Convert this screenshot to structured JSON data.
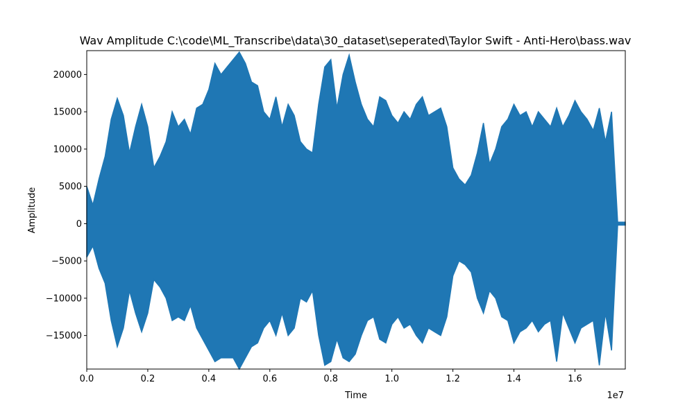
{
  "chart_data": {
    "type": "line",
    "title": "Wav Amplitude C:\\code\\ML_Transcribe\\data\\30_dataset\\seperated\\Taylor Swift - Anti-Hero\\bass.wav",
    "xlabel": "Time",
    "ylabel": "Amplitude",
    "x_offset_label": "1e7",
    "xlim": [
      0,
      17650000
    ],
    "ylim": [
      -19500,
      23200
    ],
    "x_ticks": [
      0,
      2000000,
      4000000,
      6000000,
      8000000,
      10000000,
      12000000,
      14000000,
      16000000
    ],
    "x_tick_labels": [
      "0.0",
      "0.2",
      "0.4",
      "0.6",
      "0.8",
      "1.0",
      "1.2",
      "1.4",
      "1.6"
    ],
    "y_ticks": [
      -15000,
      -10000,
      -5000,
      0,
      5000,
      10000,
      15000,
      20000
    ],
    "y_tick_labels": [
      "−15000",
      "−10000",
      "−5000",
      "0",
      "5000",
      "10000",
      "15000",
      "20000"
    ],
    "grid": false,
    "series_color": "#1f77b4",
    "series": [
      {
        "x": [
          0,
          200000,
          400000,
          600000,
          800000,
          1000000,
          1200000,
          1400000,
          1600000,
          1800000,
          2000000,
          2200000,
          2400000,
          2600000,
          2800000,
          3000000,
          3200000,
          3400000,
          3600000,
          3800000,
          4000000,
          4200000,
          4400000,
          4600000,
          4800000,
          5000000,
          5200000,
          5400000,
          5600000,
          5800000,
          6000000,
          6200000,
          6400000,
          6600000,
          6800000,
          7000000,
          7200000,
          7400000,
          7600000,
          7800000,
          8000000,
          8200000,
          8400000,
          8600000,
          8800000,
          9000000,
          9200000,
          9400000,
          9600000,
          9800000,
          10000000,
          10200000,
          10400000,
          10600000,
          10800000,
          11000000,
          11200000,
          11400000,
          11600000,
          11800000,
          12000000,
          12200000,
          12400000,
          12600000,
          12800000,
          13000000,
          13200000,
          13400000,
          13600000,
          13800000,
          14000000,
          14200000,
          14400000,
          14600000,
          14800000,
          15000000,
          15200000,
          15400000,
          15600000,
          15800000,
          16000000,
          16200000,
          16400000,
          16600000,
          16800000,
          17000000,
          17200000,
          17400000,
          17650000
        ],
        "y_max": [
          5000,
          2500,
          6000,
          9000,
          14000,
          16800,
          14500,
          9500,
          13000,
          16000,
          13000,
          7500,
          9000,
          11000,
          15000,
          13000,
          14000,
          12000,
          15500,
          16000,
          18000,
          21500,
          20000,
          21000,
          22000,
          23000,
          21500,
          19000,
          18500,
          15000,
          14000,
          17000,
          13000,
          16000,
          14500,
          11000,
          10000,
          9500,
          16000,
          21000,
          22000,
          15500,
          20000,
          22600,
          19000,
          16000,
          14000,
          13000,
          17000,
          16500,
          14500,
          13500,
          15000,
          14000,
          16000,
          17000,
          14500,
          15000,
          15500,
          13000,
          7500,
          6000,
          5200,
          6500,
          9500,
          13500,
          8000,
          10000,
          13000,
          14000,
          16000,
          14500,
          15000,
          13000,
          15000,
          14000,
          13000,
          15500,
          13000,
          14500,
          16500,
          15000,
          14000,
          12500,
          15500,
          11000,
          15000,
          200,
          200
        ],
        "y_min": [
          -4500,
          -3000,
          -6000,
          -8000,
          -13000,
          -16500,
          -14000,
          -9000,
          -12000,
          -14500,
          -12000,
          -7500,
          -8500,
          -10000,
          -13000,
          -12500,
          -13000,
          -11000,
          -14000,
          -15500,
          -17000,
          -18500,
          -18000,
          -18000,
          -18000,
          -19500,
          -18000,
          -16500,
          -16000,
          -14000,
          -13000,
          -15000,
          -12000,
          -15000,
          -14000,
          -10000,
          -10500,
          -9000,
          -15000,
          -19000,
          -18500,
          -15500,
          -18000,
          -18500,
          -17500,
          -15000,
          -13000,
          -12500,
          -15500,
          -16000,
          -13500,
          -12500,
          -14000,
          -13500,
          -15000,
          -16000,
          -14000,
          -14500,
          -15000,
          -12500,
          -7000,
          -5000,
          -5500,
          -6500,
          -10000,
          -12000,
          -9000,
          -10000,
          -12500,
          -13000,
          -16000,
          -14500,
          -14000,
          -13000,
          -14500,
          -13500,
          -13000,
          -18500,
          -12000,
          -14000,
          -16000,
          -14000,
          -13500,
          -13000,
          -19000,
          -12000,
          -17000,
          -200,
          -200
        ]
      }
    ]
  }
}
